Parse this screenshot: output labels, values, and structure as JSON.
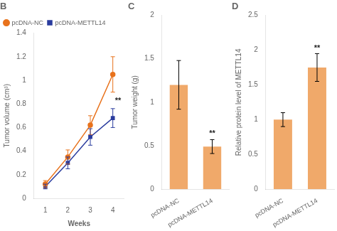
{
  "chart_data": [
    {
      "type": "line",
      "title": "B",
      "x": [
        1,
        2,
        3,
        4
      ],
      "xlim": [
        0.5,
        4.5
      ],
      "xticks": [
        1,
        2,
        3,
        4
      ],
      "ylim": [
        0,
        1.4
      ],
      "yticks": [
        0,
        0.2,
        0.4,
        0.6,
        0.8,
        1,
        1.2,
        1.4
      ],
      "xlabel": "Weeks",
      "ylabel": "Tumor volume (cm³)",
      "series": [
        {
          "name": "pcDNA-NC",
          "color": "#E8721C",
          "marker": "circle",
          "values": [
            0.12,
            0.35,
            0.62,
            1.05
          ],
          "errors": [
            0.03,
            0.06,
            0.08,
            0.15
          ]
        },
        {
          "name": "pcDNA-METTL14",
          "color": "#2A3C9E",
          "marker": "square",
          "values": [
            0.1,
            0.3,
            0.52,
            0.68
          ],
          "errors": [
            0.02,
            0.05,
            0.07,
            0.08
          ]
        }
      ],
      "legend": "upper left",
      "grid": false,
      "annotations": [
        {
          "text": "**",
          "x": 4.1,
          "y": 0.81
        }
      ]
    },
    {
      "type": "bar",
      "title": "C",
      "categories": [
        "pcDNA-NC",
        "pcDNA-METTL14"
      ],
      "values": [
        1.2,
        0.49
      ],
      "errors": [
        0.28,
        0.08
      ],
      "color": "#F0A96A",
      "ylim": [
        0,
        2.0
      ],
      "yticks": [
        0,
        0.5,
        1,
        1.5,
        2
      ],
      "ylabel": "Tumor weight (g)",
      "grid": false,
      "annotations": [
        {
          "text": "**",
          "x": "pcDNA-METTL14",
          "y": 0.62
        }
      ]
    },
    {
      "type": "bar",
      "title": "D",
      "categories": [
        "pcDNA-NC",
        "pcDNA-METTL14"
      ],
      "values": [
        1.0,
        1.75
      ],
      "errors": [
        0.1,
        0.2
      ],
      "color": "#F0A96A",
      "ylim": [
        0,
        2.5
      ],
      "yticks": [
        0,
        0.5,
        1,
        1.5,
        2,
        2.5
      ],
      "ylabel": "Relative protein level of METTL14",
      "grid": false,
      "annotations": [
        {
          "text": "**",
          "x": "pcDNA-METTL14",
          "y": 2.0
        }
      ]
    }
  ]
}
